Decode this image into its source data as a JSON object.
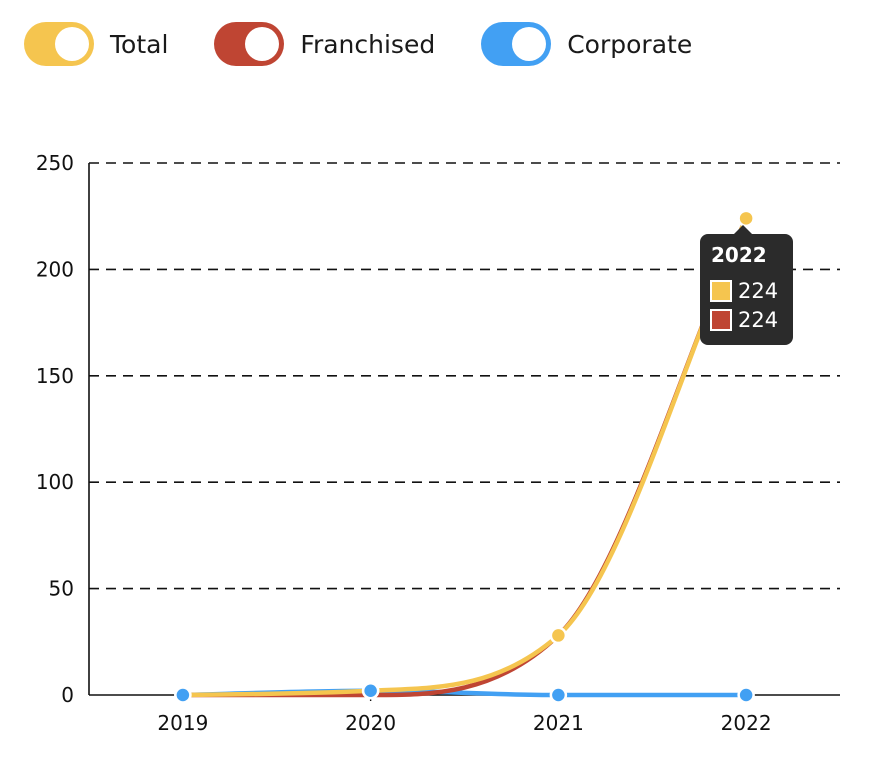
{
  "legend": [
    {
      "label": "Total",
      "color": "#f5c54f"
    },
    {
      "label": "Franchised",
      "color": "#bf4533"
    },
    {
      "label": "Corporate",
      "color": "#42a0f3"
    }
  ],
  "chart_data": {
    "type": "line",
    "categories": [
      "2019",
      "2020",
      "2021",
      "2022"
    ],
    "series": [
      {
        "name": "Total",
        "color": "#f5c54f",
        "values": [
          0,
          2,
          28,
          224
        ]
      },
      {
        "name": "Franchised",
        "color": "#bf4533",
        "values": [
          0,
          0,
          28,
          224
        ]
      },
      {
        "name": "Corporate",
        "color": "#42a0f3",
        "values": [
          0,
          2,
          0,
          0
        ]
      }
    ],
    "yticks": [
      "0",
      "50",
      "100",
      "150",
      "200",
      "250"
    ],
    "ylim": [
      0,
      250
    ],
    "grid": "horizontal dashed"
  },
  "tooltip": {
    "title": "2022",
    "rows": [
      {
        "value": "224",
        "color": "#f5c54f"
      },
      {
        "value": "224",
        "color": "#bf4533"
      }
    ]
  }
}
